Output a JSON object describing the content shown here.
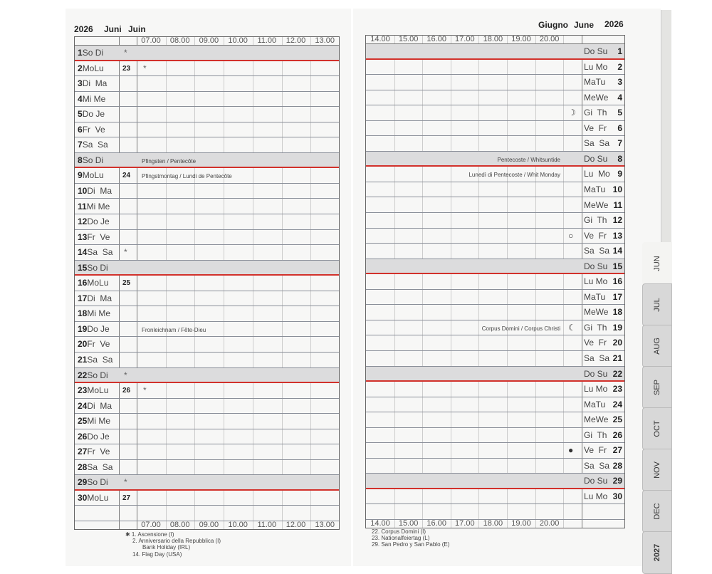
{
  "left": {
    "year": "2026",
    "month_de": "Juni",
    "month_fr": "Juin",
    "hours": [
      "07.00",
      "08.00",
      "09.00",
      "10.00",
      "11.00",
      "12.00",
      "13.00"
    ]
  },
  "right": {
    "month_it": "Giugno",
    "month_en": "June",
    "year": "2026",
    "hours": [
      "14.00",
      "15.00",
      "16.00",
      "17.00",
      "18.00",
      "19.00",
      "20.00"
    ]
  },
  "days": [
    {
      "d": "1",
      "l": "So Di",
      "r": "Do Su",
      "sun": true,
      "wmark": "*"
    },
    {
      "d": "2",
      "l": "MoLu",
      "r": "Lu Mo",
      "wk": "23",
      "hmark": "*"
    },
    {
      "d": "3",
      "l": "Di  Ma",
      "r": "MaTu"
    },
    {
      "d": "4",
      "l": "Mi Me",
      "r": "MeWe"
    },
    {
      "d": "5",
      "l": "Do Je",
      "r": "Gi  Th",
      "moon": "☽"
    },
    {
      "d": "6",
      "l": "Fr  Ve",
      "r": "Ve  Fr"
    },
    {
      "d": "7",
      "l": "Sa  Sa",
      "r": "Sa  Sa"
    },
    {
      "d": "8",
      "l": "So Di",
      "r": "Do Su",
      "sun": true,
      "hol_l": "Pfingsten / Pentecôte",
      "hol_r": "Pentecoste / Whitsuntide"
    },
    {
      "d": "9",
      "l": "MoLu",
      "r": "Lu  Mo",
      "wk": "24",
      "hol_l": "Pfingstmontag / Lundi de Pentecôte",
      "hol_r": "Lunedì di Pentecoste / Whit Monday"
    },
    {
      "d": "10",
      "l": "Di  Ma",
      "r": "MaTu"
    },
    {
      "d": "11",
      "l": "Mi Me",
      "r": "MeWe"
    },
    {
      "d": "12",
      "l": "Do Je",
      "r": "Gi  Th"
    },
    {
      "d": "13",
      "l": "Fr  Ve",
      "r": "Ve  Fr",
      "moon": "○"
    },
    {
      "d": "14",
      "l": "Sa  Sa",
      "r": "Sa  Sa",
      "wmark": "*"
    },
    {
      "d": "15",
      "l": "So Di",
      "r": "Do Su",
      "sun": true
    },
    {
      "d": "16",
      "l": "MoLu",
      "r": "Lu Mo",
      "wk": "25"
    },
    {
      "d": "17",
      "l": "Di  Ma",
      "r": "MaTu"
    },
    {
      "d": "18",
      "l": "Mi Me",
      "r": "MeWe"
    },
    {
      "d": "19",
      "l": "Do Je",
      "r": "Gi  Th",
      "moon": "☾",
      "hol_l": "Fronleichnam / Fête-Dieu",
      "hol_r": "Corpus Domini / Corpus Christi"
    },
    {
      "d": "20",
      "l": "Fr  Ve",
      "r": "Ve  Fr"
    },
    {
      "d": "21",
      "l": "Sa  Sa",
      "r": "Sa  Sa"
    },
    {
      "d": "22",
      "l": "So Di",
      "r": "Do Su",
      "sun": true,
      "wmark": "*"
    },
    {
      "d": "23",
      "l": "MoLu",
      "r": "Lu Mo",
      "wk": "26",
      "hmark": "*"
    },
    {
      "d": "24",
      "l": "Di  Ma",
      "r": "MaTu"
    },
    {
      "d": "25",
      "l": "Mi Me",
      "r": "MeWe"
    },
    {
      "d": "26",
      "l": "Do Je",
      "r": "Gi  Th"
    },
    {
      "d": "27",
      "l": "Fr  Ve",
      "r": "Ve  Fr",
      "moon": "●"
    },
    {
      "d": "28",
      "l": "Sa  Sa",
      "r": "Sa  Sa"
    },
    {
      "d": "29",
      "l": "So Di",
      "r": "Do Su",
      "sun": true,
      "wmark": "*"
    },
    {
      "d": "30",
      "l": "MoLu",
      "r": "Lu Mo",
      "wk": "27"
    }
  ],
  "footnotes_left": [
    "✱ 1.  Ascensione (I)",
    "2.  Anniversario della Repubblica (I)",
    "Bank Holiday (IRL)",
    "14. Flag Day (USA)"
  ],
  "footnotes_right": [
    "22. Corpus Domini (I)",
    "23. Nationalfeiertag (L)",
    "29. San Pedro y San Pablo (E)"
  ],
  "tabs": [
    "JUN",
    "JUL",
    "AUG",
    "SEP",
    "OCT",
    "NOV",
    "DEC",
    "2027"
  ]
}
